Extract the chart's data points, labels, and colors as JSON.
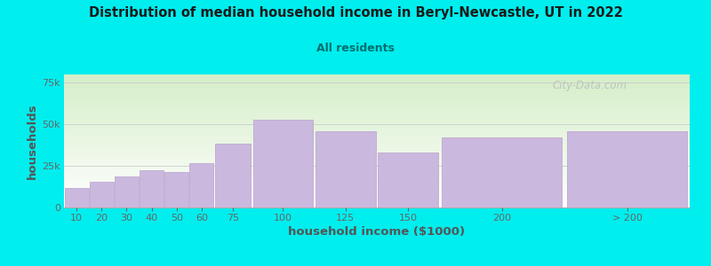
{
  "title": "Distribution of median household income in Beryl-Newcastle, UT in 2022",
  "subtitle": "All residents",
  "xlabel": "household income ($1000)",
  "ylabel": "households",
  "background_color": "#00EEEE",
  "plot_bg_top_color": "#d5eec8",
  "plot_bg_bottom_color": "#ffffff",
  "bar_color": "#cbb8de",
  "bar_edge_color": "#b8a0cc",
  "title_color": "#1a1a1a",
  "subtitle_color": "#007070",
  "axis_label_color": "#555555",
  "tick_color": "#666666",
  "grid_color": "#cccccc",
  "watermark_color": "#bbbbbb",
  "categories": [
    "10",
    "20",
    "30",
    "40",
    "50",
    "60",
    "75",
    "100",
    "125",
    "150",
    "200",
    "> 200"
  ],
  "values": [
    12000,
    15500,
    18500,
    22500,
    21500,
    26500,
    38500,
    53000,
    46000,
    33000,
    42000,
    46000
  ],
  "ylim": [
    0,
    80000
  ],
  "yticks": [
    0,
    25000,
    50000,
    75000
  ],
  "x_edges": [
    0,
    10,
    20,
    30,
    40,
    50,
    60,
    75,
    100,
    125,
    150,
    200,
    250
  ],
  "watermark": "City-Data.com"
}
